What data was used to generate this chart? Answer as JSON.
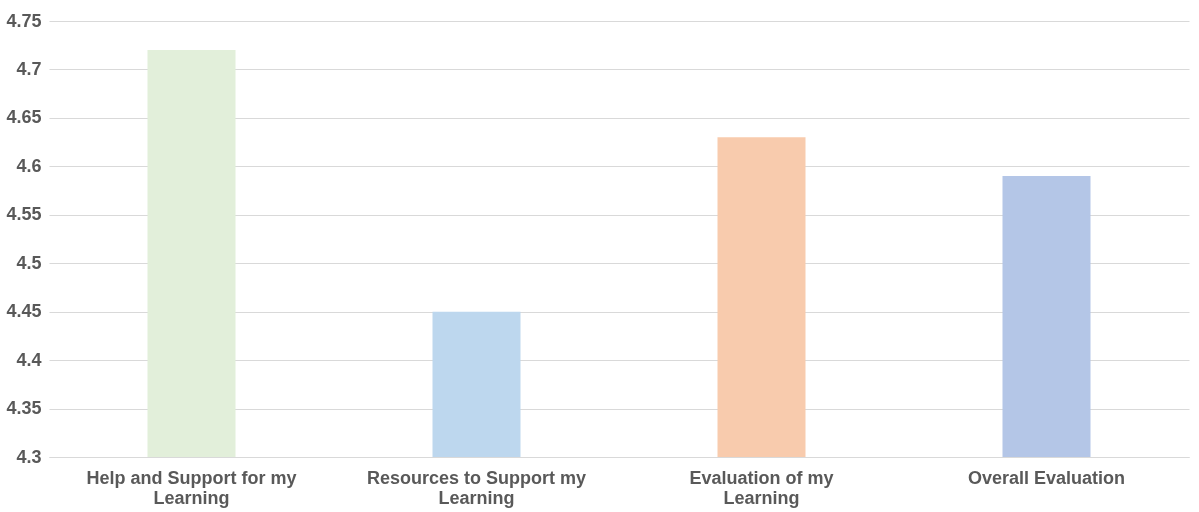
{
  "chart_data": {
    "type": "bar",
    "categories": [
      "Help and Support for my Learning",
      "Resources to Support my Learning",
      "Evaluation of my Learning",
      "Overall Evaluation"
    ],
    "values": [
      4.72,
      4.45,
      4.63,
      4.59
    ],
    "colors": [
      "#e2efda",
      "#bdd7ee",
      "#f8cbad",
      "#b4c6e7"
    ],
    "ylim": [
      4.3,
      4.75
    ],
    "yticks": [
      4.3,
      4.35,
      4.4,
      4.45,
      4.5,
      4.55,
      4.6,
      4.65,
      4.7,
      4.75
    ],
    "grid": "y"
  }
}
